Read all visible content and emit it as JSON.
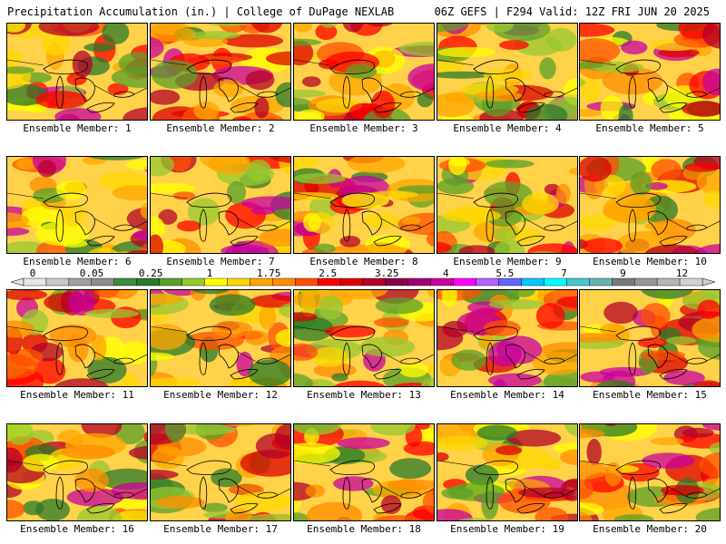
{
  "header": {
    "left": "Precipitation Accumulation (in.) | College of DuPage NEXLAB",
    "right": "06Z GEFS | F294 Valid: 12Z FRI JUN 20 2025"
  },
  "members": [
    {
      "label": "Ensemble Member: 1"
    },
    {
      "label": "Ensemble Member: 2"
    },
    {
      "label": "Ensemble Member: 3"
    },
    {
      "label": "Ensemble Member: 4"
    },
    {
      "label": "Ensemble Member: 5"
    },
    {
      "label": "Ensemble Member: 6"
    },
    {
      "label": "Ensemble Member: 7"
    },
    {
      "label": "Ensemble Member: 8"
    },
    {
      "label": "Ensemble Member: 9"
    },
    {
      "label": "Ensemble Member: 10"
    },
    {
      "label": "Ensemble Member: 11"
    },
    {
      "label": "Ensemble Member: 12"
    },
    {
      "label": "Ensemble Member: 13"
    },
    {
      "label": "Ensemble Member: 14"
    },
    {
      "label": "Ensemble Member: 15"
    },
    {
      "label": "Ensemble Member: 16"
    },
    {
      "label": "Ensemble Member: 17"
    },
    {
      "label": "Ensemble Member: 18"
    },
    {
      "label": "Ensemble Member: 19"
    },
    {
      "label": "Ensemble Member: 20"
    }
  ],
  "colorbar": {
    "tick_labels": [
      "0",
      "0.05",
      "0.25",
      "1",
      "1.75",
      "2.5",
      "3.25",
      "4",
      "5.5",
      "7",
      "9",
      "12"
    ],
    "colors": [
      "#e6e6e6",
      "#c8c8c8",
      "#a0a0a0",
      "#8c8c8c",
      "#3c8c3c",
      "#2a7a2a",
      "#5aa02a",
      "#96c832",
      "#ffff00",
      "#ffd700",
      "#ffa500",
      "#ff8c00",
      "#ff5000",
      "#ff0000",
      "#dc0000",
      "#b40028",
      "#8c0046",
      "#a0006e",
      "#c800a0",
      "#ff00ff",
      "#b464ff",
      "#6464ff",
      "#00c8ff",
      "#00ffff",
      "#46c8c8",
      "#64b4b4",
      "#787878",
      "#969696",
      "#b4b4b4",
      "#d2d2d2"
    ]
  }
}
